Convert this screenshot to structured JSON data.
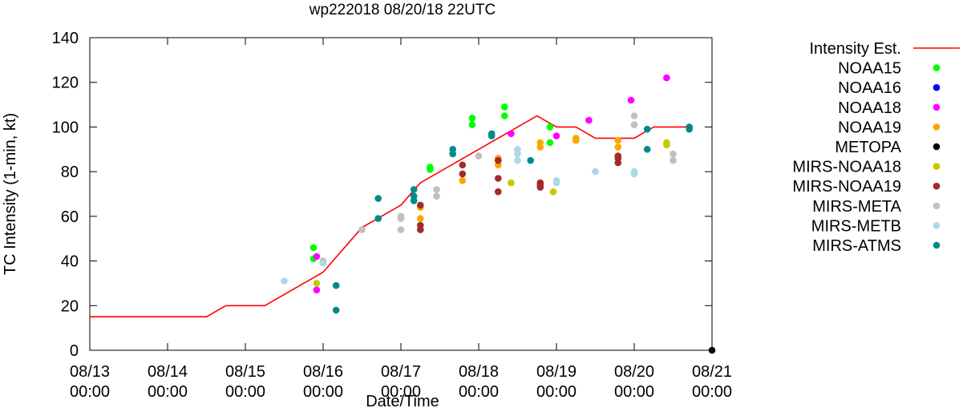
{
  "chart_data": {
    "type": "scatter",
    "title": "wp222018 08/20/18 22UTC",
    "xlabel": "Date/Time",
    "ylabel": "TC Intensity (1-min, kt)",
    "xlim": [
      "08/13 00:00",
      "08/21 00:00"
    ],
    "ylim": [
      0,
      140
    ],
    "x_ticks": [
      {
        "at": "08/13 00:00",
        "line1": "08/13",
        "line2": "00:00"
      },
      {
        "at": "08/14 00:00",
        "line1": "08/14",
        "line2": "00:00"
      },
      {
        "at": "08/15 00:00",
        "line1": "08/15",
        "line2": "00:00"
      },
      {
        "at": "08/16 00:00",
        "line1": "08/16",
        "line2": "00:00"
      },
      {
        "at": "08/17 00:00",
        "line1": "08/17",
        "line2": "00:00"
      },
      {
        "at": "08/18 00:00",
        "line1": "08/18",
        "line2": "00:00"
      },
      {
        "at": "08/19 00:00",
        "line1": "08/19",
        "line2": "00:00"
      },
      {
        "at": "08/20 00:00",
        "line1": "08/20",
        "line2": "00:00"
      },
      {
        "at": "08/21 00:00",
        "line1": "08/21",
        "line2": "00:00"
      }
    ],
    "y_ticks": [
      0,
      20,
      40,
      60,
      80,
      100,
      120,
      140
    ],
    "grid": false,
    "legend": "right, outside plot",
    "series": [
      {
        "name": "Intensity Est.",
        "kind": "line",
        "color": "#ff0000",
        "points": [
          [
            "08/13 00:00",
            15
          ],
          [
            "08/14 12:00",
            15
          ],
          [
            "08/14 18:00",
            20
          ],
          [
            "08/15 06:00",
            20
          ],
          [
            "08/16 00:00",
            35
          ],
          [
            "08/16 12:00",
            55
          ],
          [
            "08/17 00:00",
            65
          ],
          [
            "08/17 06:00",
            75
          ],
          [
            "08/18 18:00",
            105
          ],
          [
            "08/19 00:00",
            100
          ],
          [
            "08/19 06:00",
            100
          ],
          [
            "08/19 12:00",
            95
          ],
          [
            "08/20 00:00",
            95
          ],
          [
            "08/20 06:00",
            100
          ],
          [
            "08/20 18:00",
            100
          ]
        ]
      },
      {
        "name": "NOAA15",
        "kind": "scatter",
        "color": "#00ff00",
        "points": [
          [
            "08/15 21:00",
            46
          ],
          [
            "08/15 21:00",
            41
          ],
          [
            "08/17 09:00",
            82
          ],
          [
            "08/17 09:00",
            81
          ],
          [
            "08/17 22:00",
            104
          ],
          [
            "08/17 22:00",
            101
          ],
          [
            "08/18 08:00",
            109
          ],
          [
            "08/18 08:00",
            105
          ],
          [
            "08/18 22:00",
            100
          ],
          [
            "08/18 22:00",
            93
          ]
        ]
      },
      {
        "name": "NOAA16",
        "kind": "scatter",
        "color": "#0000ff",
        "points": []
      },
      {
        "name": "NOAA18",
        "kind": "scatter",
        "color": "#ff00ff",
        "points": [
          [
            "08/15 22:00",
            42
          ],
          [
            "08/15 22:00",
            27
          ],
          [
            "08/18 10:00",
            97
          ],
          [
            "08/19 00:00",
            96
          ],
          [
            "08/19 10:00",
            103
          ],
          [
            "08/19 23:00",
            112
          ],
          [
            "08/20 10:00",
            122
          ]
        ]
      },
      {
        "name": "NOAA19",
        "kind": "scatter",
        "color": "#ffa500",
        "points": [
          [
            "08/17 06:00",
            64
          ],
          [
            "08/17 06:00",
            59
          ],
          [
            "08/17 19:00",
            76
          ],
          [
            "08/18 06:00",
            86
          ],
          [
            "08/18 06:00",
            83
          ],
          [
            "08/18 19:00",
            93
          ],
          [
            "08/18 19:00",
            91
          ],
          [
            "08/19 06:00",
            95
          ],
          [
            "08/19 06:00",
            94
          ],
          [
            "08/19 19:00",
            94
          ],
          [
            "08/19 19:00",
            91
          ]
        ]
      },
      {
        "name": "METOPA",
        "kind": "scatter",
        "color": "#000000",
        "points": [
          [
            "08/21 00:00",
            0
          ]
        ]
      },
      {
        "name": "MIRS-NOAA18",
        "kind": "scatter",
        "color": "#c8c800",
        "points": [
          [
            "08/15 22:00",
            30
          ],
          [
            "08/18 10:00",
            75
          ],
          [
            "08/18 23:00",
            71
          ],
          [
            "08/20 10:00",
            93
          ],
          [
            "08/20 10:00",
            92
          ]
        ]
      },
      {
        "name": "MIRS-NOAA19",
        "kind": "scatter",
        "color": "#a52a2a",
        "points": [
          [
            "08/17 06:00",
            65
          ],
          [
            "08/17 06:00",
            56
          ],
          [
            "08/17 06:00",
            54
          ],
          [
            "08/17 19:00",
            83
          ],
          [
            "08/17 19:00",
            79
          ],
          [
            "08/18 06:00",
            85
          ],
          [
            "08/18 06:00",
            77
          ],
          [
            "08/18 06:00",
            71
          ],
          [
            "08/18 19:00",
            75
          ],
          [
            "08/18 19:00",
            74
          ],
          [
            "08/18 19:00",
            73
          ],
          [
            "08/19 19:00",
            87
          ],
          [
            "08/19 19:00",
            86
          ],
          [
            "08/19 19:00",
            84
          ]
        ]
      },
      {
        "name": "MIRS-META",
        "kind": "scatter",
        "color": "#c0c0c0",
        "points": [
          [
            "08/16 00:00",
            40
          ],
          [
            "08/16 12:00",
            54
          ],
          [
            "08/17 00:00",
            60
          ],
          [
            "08/17 00:00",
            59
          ],
          [
            "08/17 00:00",
            54
          ],
          [
            "08/17 11:00",
            72
          ],
          [
            "08/17 11:00",
            69
          ],
          [
            "08/18 00:00",
            87
          ],
          [
            "08/20 00:00",
            105
          ],
          [
            "08/20 00:00",
            101
          ],
          [
            "08/20 12:00",
            88
          ],
          [
            "08/20 12:00",
            85
          ]
        ]
      },
      {
        "name": "MIRS-METB",
        "kind": "scatter",
        "color": "#add8e6",
        "points": [
          [
            "08/15 12:00",
            31
          ],
          [
            "08/16 00:00",
            39
          ],
          [
            "08/18 12:00",
            90
          ],
          [
            "08/18 12:00",
            88
          ],
          [
            "08/18 12:00",
            85
          ],
          [
            "08/19 00:00",
            76
          ],
          [
            "08/19 00:00",
            75
          ],
          [
            "08/19 12:00",
            80
          ],
          [
            "08/20 00:00",
            80
          ],
          [
            "08/20 00:00",
            79
          ]
        ]
      },
      {
        "name": "MIRS-ATMS",
        "kind": "scatter",
        "color": "#008b8b",
        "points": [
          [
            "08/16 04:00",
            29
          ],
          [
            "08/16 04:00",
            18
          ],
          [
            "08/16 17:00",
            68
          ],
          [
            "08/16 17:00",
            59
          ],
          [
            "08/17 04:00",
            72
          ],
          [
            "08/17 04:00",
            69
          ],
          [
            "08/17 04:00",
            67
          ],
          [
            "08/17 16:00",
            90
          ],
          [
            "08/17 16:00",
            88
          ],
          [
            "08/18 04:00",
            97
          ],
          [
            "08/18 04:00",
            96
          ],
          [
            "08/18 16:00",
            85
          ],
          [
            "08/20 04:00",
            99
          ],
          [
            "08/20 04:00",
            90
          ],
          [
            "08/20 17:00",
            100
          ],
          [
            "08/20 17:00",
            99
          ]
        ]
      }
    ]
  }
}
